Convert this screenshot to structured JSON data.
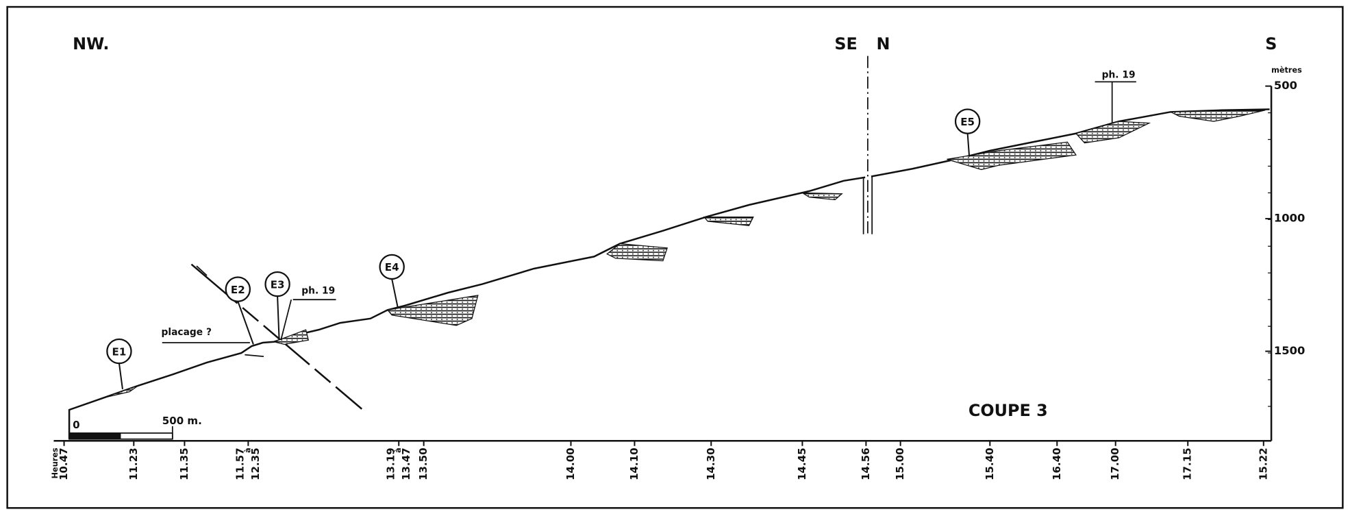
{
  "header": {
    "left": "NW.",
    "middle_left": "SE",
    "middle_right": "N",
    "right": "S"
  },
  "title": "COUPE 3",
  "stations": [
    "E1",
    "E2",
    "E3",
    "E4",
    "E5"
  ],
  "annotations": {
    "placage": "placage ?",
    "photo_left": "ph. 19",
    "photo_right": "ph. 19"
  },
  "scale": {
    "start": "0",
    "end": "500 m."
  },
  "altitude_axis": {
    "unit": "mètres",
    "ticks": [
      "500",
      "1000",
      "1500"
    ]
  },
  "time_axis": {
    "unit": "Heures",
    "labels": [
      [
        "10.47"
      ],
      [
        "11.23"
      ],
      [
        "11.35"
      ],
      [
        "11.57",
        "à",
        "12.35"
      ],
      [
        "13.19",
        "à",
        "13.47"
      ],
      [
        "13.50"
      ],
      [
        "14.00"
      ],
      [
        "14.10"
      ],
      [
        "14.30"
      ],
      [
        "14.45"
      ],
      [
        "14.56"
      ],
      [
        "15.00"
      ],
      [
        "15.40"
      ],
      [
        "16.40"
      ],
      [
        "17.00"
      ],
      [
        "17.15"
      ],
      [
        "15.22"
      ]
    ]
  }
}
